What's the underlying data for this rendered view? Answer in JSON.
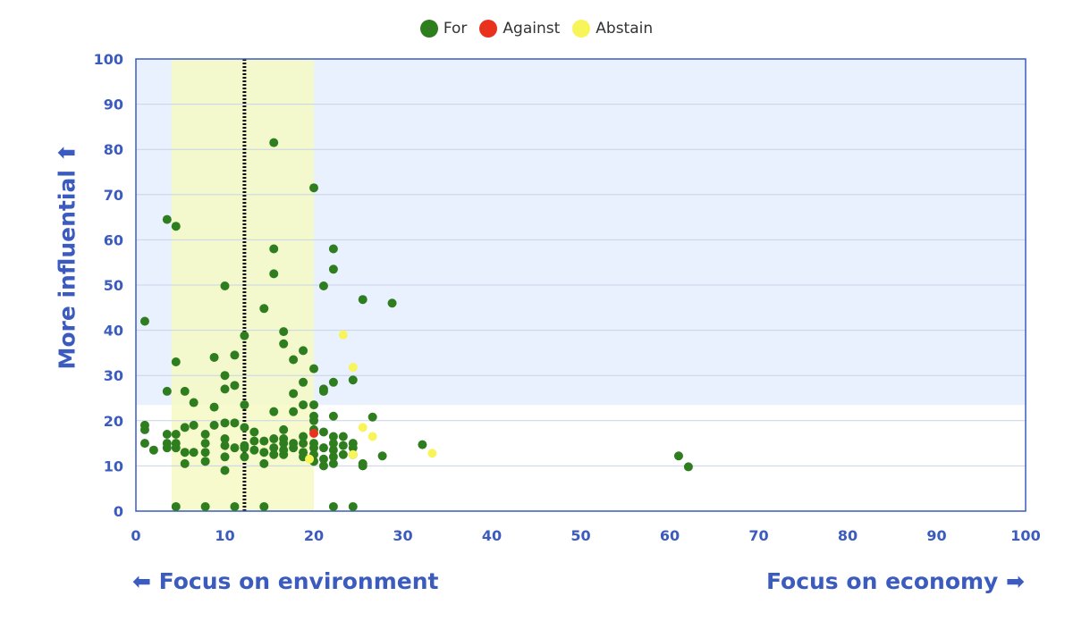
{
  "chart_data": {
    "type": "scatter",
    "title": "",
    "xlabel_left": "⬅ Focus on environment",
    "xlabel_right": "Focus on economy ➡",
    "ylabel": "More influential ⬆",
    "xlim": [
      0,
      100
    ],
    "ylim": [
      0,
      100
    ],
    "x_ticks": [
      0,
      10,
      20,
      30,
      40,
      50,
      60,
      70,
      80,
      90,
      100
    ],
    "y_ticks": [
      0,
      10,
      20,
      30,
      40,
      50,
      60,
      70,
      80,
      90,
      100
    ],
    "legend_position": "top-center",
    "grid": true,
    "background_regions": [
      {
        "kind": "y-band",
        "from": 23.5,
        "to": 100,
        "color": "#e8f1fd"
      },
      {
        "kind": "x-band",
        "from": 4,
        "to": 20,
        "color": "#f4f9c4"
      }
    ],
    "reference_line": {
      "x": 12.2,
      "style": "dotted",
      "color": "#111111"
    },
    "series": [
      {
        "name": "For",
        "color": "#2e7d1f",
        "points": [
          [
            1,
            15
          ],
          [
            1,
            18
          ],
          [
            1,
            19
          ],
          [
            1,
            42
          ],
          [
            2,
            13.5
          ],
          [
            3.5,
            64.5
          ],
          [
            3.5,
            26.5
          ],
          [
            3.5,
            17
          ],
          [
            3.5,
            15
          ],
          [
            3.5,
            14
          ],
          [
            4.5,
            63
          ],
          [
            4.5,
            33
          ],
          [
            4.5,
            17
          ],
          [
            4.5,
            15
          ],
          [
            4.5,
            14
          ],
          [
            4.5,
            1
          ],
          [
            5.5,
            26.5
          ],
          [
            5.5,
            18.5
          ],
          [
            5.5,
            13
          ],
          [
            5.5,
            10.5
          ],
          [
            6.5,
            24
          ],
          [
            6.5,
            19
          ],
          [
            6.5,
            13
          ],
          [
            7.8,
            17
          ],
          [
            7.8,
            15
          ],
          [
            7.8,
            13
          ],
          [
            7.8,
            11
          ],
          [
            7.8,
            1
          ],
          [
            8.8,
            34
          ],
          [
            8.8,
            23
          ],
          [
            8.8,
            19
          ],
          [
            10,
            49.8
          ],
          [
            10,
            30
          ],
          [
            10,
            27
          ],
          [
            10,
            19.5
          ],
          [
            10,
            16
          ],
          [
            10,
            14.5
          ],
          [
            10,
            12
          ],
          [
            10,
            9
          ],
          [
            11.1,
            34.5
          ],
          [
            11.1,
            27.8
          ],
          [
            11.1,
            19.5
          ],
          [
            11.1,
            14
          ],
          [
            11.1,
            1
          ],
          [
            12.2,
            38.8
          ],
          [
            12.2,
            23.5
          ],
          [
            12.2,
            18.5
          ],
          [
            12.2,
            14.5
          ],
          [
            12.2,
            14
          ],
          [
            12.2,
            12
          ],
          [
            13.3,
            17.5
          ],
          [
            13.3,
            15.5
          ],
          [
            13.3,
            13.5
          ],
          [
            14.4,
            44.8
          ],
          [
            14.4,
            15.5
          ],
          [
            14.4,
            13
          ],
          [
            14.4,
            10.5
          ],
          [
            14.4,
            1
          ],
          [
            15.5,
            81.5
          ],
          [
            15.5,
            58
          ],
          [
            15.5,
            52.5
          ],
          [
            15.5,
            22
          ],
          [
            15.5,
            16
          ],
          [
            15.5,
            14
          ],
          [
            15.5,
            12.5
          ],
          [
            16.6,
            39.7
          ],
          [
            16.6,
            37
          ],
          [
            16.6,
            18
          ],
          [
            16.6,
            16
          ],
          [
            16.6,
            15
          ],
          [
            16.6,
            13.5
          ],
          [
            16.6,
            12.5
          ],
          [
            17.7,
            33.5
          ],
          [
            17.7,
            26
          ],
          [
            17.7,
            22
          ],
          [
            17.7,
            15
          ],
          [
            17.7,
            14
          ],
          [
            18.8,
            35.5
          ],
          [
            18.8,
            28.5
          ],
          [
            18.8,
            23.5
          ],
          [
            18.8,
            16.5
          ],
          [
            18.8,
            15
          ],
          [
            18.8,
            13
          ],
          [
            18.8,
            12
          ],
          [
            20,
            71.5
          ],
          [
            20,
            31.5
          ],
          [
            20,
            23.5
          ],
          [
            20,
            21
          ],
          [
            20,
            20
          ],
          [
            20,
            18
          ],
          [
            20,
            15
          ],
          [
            20,
            14
          ],
          [
            20,
            12.5
          ],
          [
            20,
            11
          ],
          [
            21.1,
            49.8
          ],
          [
            21.1,
            27
          ],
          [
            21.1,
            26.5
          ],
          [
            21.1,
            17.5
          ],
          [
            21.1,
            14
          ],
          [
            21.1,
            11.5
          ],
          [
            21.1,
            10
          ],
          [
            22.2,
            58
          ],
          [
            22.2,
            53.5
          ],
          [
            22.2,
            28.5
          ],
          [
            22.2,
            21
          ],
          [
            22.2,
            16.5
          ],
          [
            22.2,
            15
          ],
          [
            22.2,
            13.5
          ],
          [
            22.2,
            12
          ],
          [
            22.2,
            10.5
          ],
          [
            22.2,
            1
          ],
          [
            23.3,
            16.5
          ],
          [
            23.3,
            14.5
          ],
          [
            23.3,
            12.5
          ],
          [
            24.4,
            29
          ],
          [
            24.4,
            15
          ],
          [
            24.4,
            14
          ],
          [
            24.4,
            12.5
          ],
          [
            24.4,
            1
          ],
          [
            25.5,
            46.8
          ],
          [
            25.5,
            10.5
          ],
          [
            25.5,
            10
          ],
          [
            26.6,
            20.8
          ],
          [
            27.7,
            12.2
          ],
          [
            28.8,
            46
          ],
          [
            32.2,
            14.7
          ],
          [
            61,
            12.2
          ],
          [
            62.1,
            9.8
          ]
        ]
      },
      {
        "name": "Against",
        "color": "#e8321e",
        "points": [
          [
            20,
            17.2
          ]
        ]
      },
      {
        "name": "Abstain",
        "color": "#f7f55a",
        "points": [
          [
            23.3,
            39
          ],
          [
            24.4,
            31.8
          ],
          [
            25.5,
            18.5
          ],
          [
            26.6,
            16.5
          ],
          [
            33.3,
            12.8
          ],
          [
            19.5,
            11.5
          ],
          [
            24.4,
            12.5
          ]
        ]
      }
    ]
  }
}
